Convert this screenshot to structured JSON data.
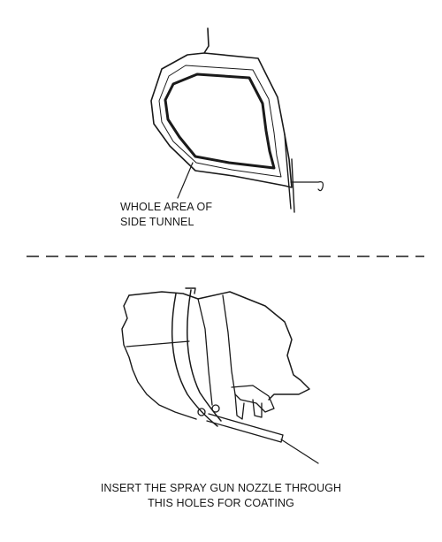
{
  "top_figure": {
    "callout_lines": [
      "WHOLE AREA OF",
      "SIDE TUNNEL"
    ]
  },
  "bottom_figure": {
    "callout_lines": [
      "INSERT THE SPRAY GUN NOZZLE THROUGH",
      "THIS HOLES FOR COATING"
    ]
  },
  "colors": {
    "ink": "#1a1a1a",
    "background": "#ffffff"
  }
}
